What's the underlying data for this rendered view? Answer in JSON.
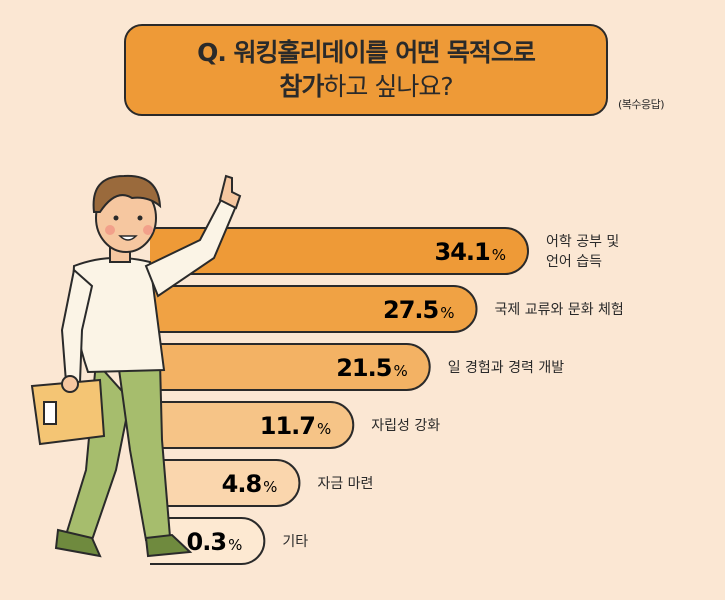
{
  "header": {
    "title_line1": "Q. 워킹홀리데이를 어떤 목적으로",
    "title_line2_bold": "참가",
    "title_line2_rest": "하고 싶나요?",
    "note": "(복수응답)"
  },
  "colors": {
    "background": "#fbe7d3",
    "bars": [
      "#ee9a37",
      "#f0a244",
      "#f3b264",
      "#f6c487",
      "#fad6ad",
      "#fde9d2"
    ],
    "outline": "#2a2a2a"
  },
  "chart_data": {
    "type": "bar",
    "orientation": "horizontal",
    "categories": [
      [
        "어학 공부 및",
        "언어 습득"
      ],
      [
        "국제 교류와 문화 체험"
      ],
      [
        "일 경험과 경력 개발"
      ],
      [
        "자립성 강화"
      ],
      [
        "자금 마련"
      ],
      [
        "기타"
      ]
    ],
    "values": [
      34.1,
      27.5,
      21.5,
      11.7,
      4.8,
      0.3
    ],
    "value_suffix": "%"
  }
}
